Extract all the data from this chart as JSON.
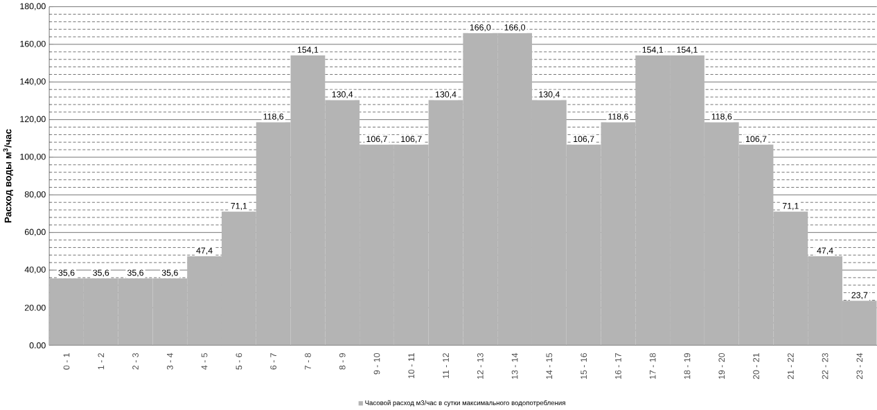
{
  "chart_data": {
    "type": "bar",
    "ylabel": "Расход воды м$^{3}$/час",
    "categories": [
      "0 - 1",
      "1 - 2",
      "2 - 3",
      "3 - 4",
      "4 - 5",
      "5 - 6",
      "6 - 7",
      "7 - 8",
      "8 - 9",
      "9 - 10",
      "10 - 11",
      "11 - 12",
      "12 - 13",
      "13 - 14",
      "14 - 15",
      "15 - 16",
      "16 - 17",
      "17 - 18",
      "18 - 19",
      "19 - 20",
      "20 - 21",
      "21 - 22",
      "22 - 23",
      "23 - 24"
    ],
    "series": [
      {
        "name": "Часовой расход м3/час в сутки максимального  водопотребления",
        "color": "#b4b4b4",
        "values": [
          35.6,
          35.6,
          35.6,
          35.6,
          47.4,
          71.1,
          118.6,
          154.1,
          130.4,
          106.7,
          106.7,
          130.4,
          166.0,
          166.0,
          130.4,
          106.7,
          118.6,
          154.1,
          154.1,
          118.6,
          106.7,
          71.1,
          47.4,
          23.7
        ],
        "value_labels": [
          "35,6",
          "35,6",
          "35,6",
          "35,6",
          "47,4",
          "71,1",
          "118,6",
          "154,1",
          "130,4",
          "106,7",
          "106,7",
          "130,4",
          "166,0",
          "166,0",
          "130,4",
          "106,7",
          "118,6",
          "154,1",
          "154,1",
          "118,6",
          "106,7",
          "71,1",
          "47,4",
          "23,7"
        ]
      }
    ],
    "ylim": [
      0,
      180
    ],
    "yticks": [
      {
        "value": 0,
        "label": "0.00"
      },
      {
        "value": 20,
        "label": "20.00"
      },
      {
        "value": 40,
        "label": "40,00"
      },
      {
        "value": 60,
        "label": "60,00"
      },
      {
        "value": 80,
        "label": "80,00"
      },
      {
        "value": 100,
        "label": "100,00"
      },
      {
        "value": 120,
        "label": "120,00"
      },
      {
        "value": 140,
        "label": "140,00"
      },
      {
        "value": 160,
        "label": "160,00"
      },
      {
        "value": 180,
        "label": "180,00"
      }
    ],
    "grid": "y",
    "legend": "bottom"
  }
}
